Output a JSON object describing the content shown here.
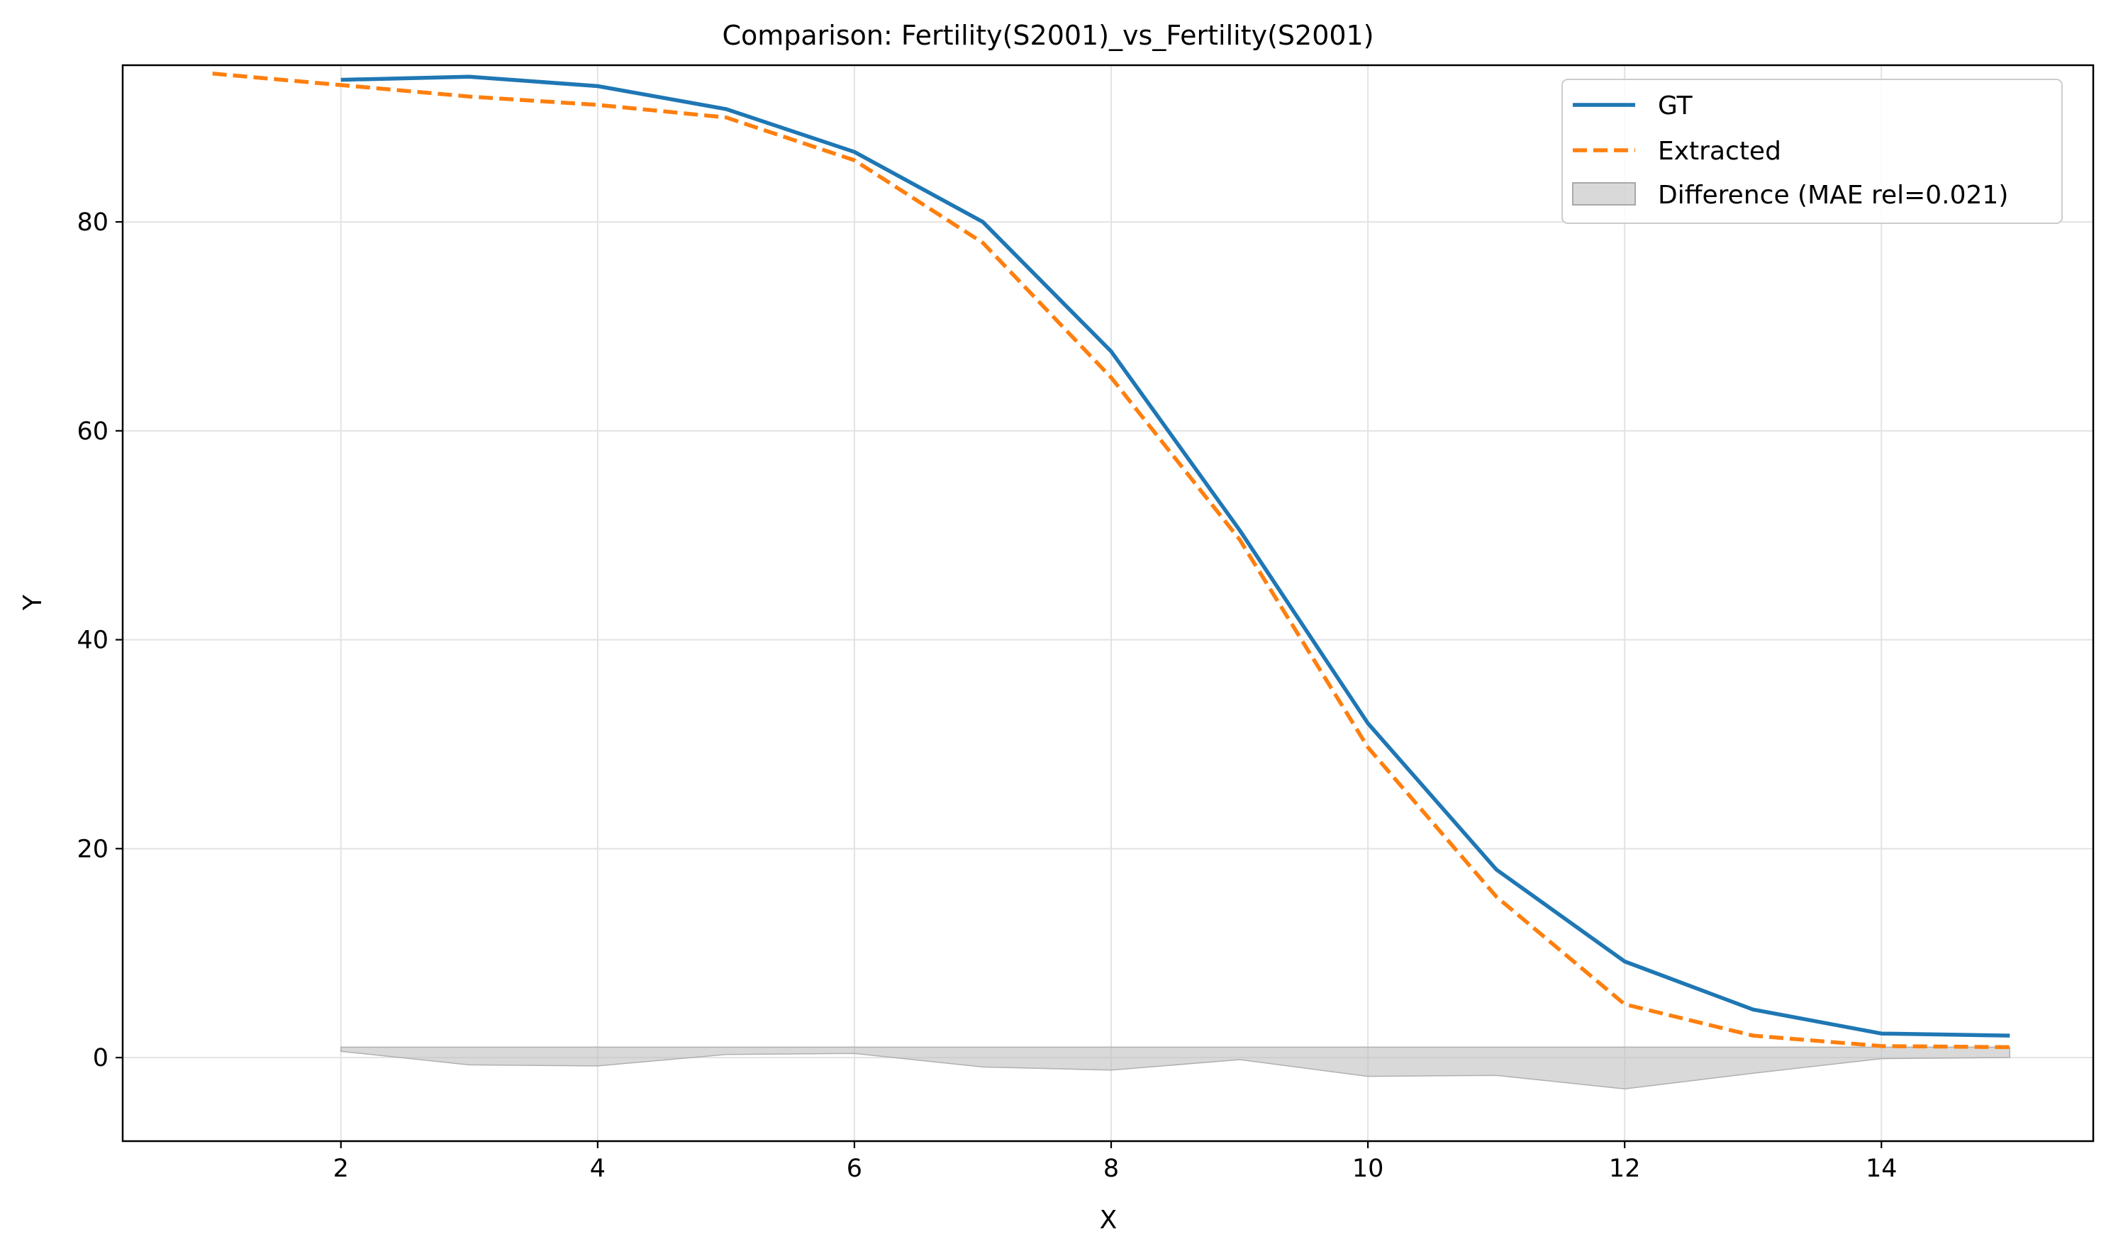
{
  "chart_data": {
    "type": "line",
    "title": "Comparison: Fertility(S2001)_vs_Fertility(S2001)",
    "xlabel": "X",
    "ylabel": "Y",
    "xlim": [
      0.3,
      15.65
    ],
    "ylim": [
      -8,
      95
    ],
    "xticks": [
      2,
      4,
      6,
      8,
      10,
      12,
      14
    ],
    "yticks": [
      0,
      20,
      40,
      60,
      80
    ],
    "grid": true,
    "legend_position": "top-right",
    "series": [
      {
        "name": "GT",
        "style": "solid",
        "color": "#1f77b4",
        "x": [
          2,
          3,
          4,
          5,
          6,
          7,
          8,
          9,
          10,
          11,
          12,
          13,
          14,
          15
        ],
        "y": [
          93.6,
          93.9,
          93.0,
          90.8,
          86.7,
          80.0,
          67.6,
          50.5,
          32.0,
          18.0,
          9.2,
          4.6,
          2.3,
          2.1
        ]
      },
      {
        "name": "Extracted",
        "style": "dashed",
        "color": "#ff7f0e",
        "x": [
          1,
          2,
          3,
          4,
          5,
          6,
          7,
          8,
          9,
          10,
          11,
          12,
          13,
          14,
          15
        ],
        "y": [
          94.2,
          93.1,
          92.0,
          91.2,
          90.0,
          85.9,
          78.0,
          65.1,
          49.6,
          29.7,
          15.4,
          5.1,
          2.1,
          1.1,
          1.0
        ]
      }
    ],
    "difference": {
      "name": "Difference (MAE rel=0.021)",
      "color": "#bfbfbf",
      "x": [
        2,
        3,
        4,
        5,
        6,
        7,
        8,
        9,
        10,
        11,
        12,
        13,
        14,
        15
      ],
      "upper": [
        1.0,
        1.0,
        1.0,
        1.0,
        1.0,
        1.0,
        1.0,
        1.0,
        1.0,
        1.0,
        1.0,
        1.0,
        1.0,
        1.0
      ],
      "lower": [
        0.6,
        -0.7,
        -0.8,
        0.3,
        0.4,
        -0.9,
        -1.2,
        -0.2,
        -1.8,
        -1.7,
        -3.0,
        -1.5,
        -0.1,
        0.0
      ]
    }
  }
}
